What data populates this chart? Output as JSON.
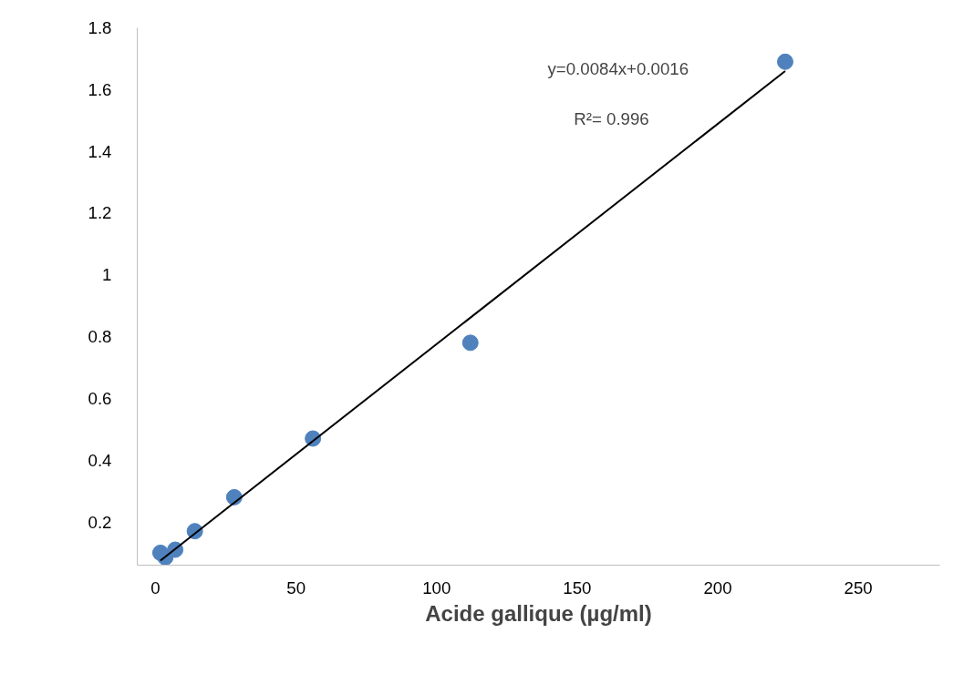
{
  "chart_data": {
    "type": "scatter",
    "xlabel": "Acide gallique (µg/ml)",
    "xlim": [
      -6.5,
      279
    ],
    "xticks": [
      0,
      50,
      100,
      150,
      200,
      250
    ],
    "ylim": [
      0.06,
      1.8
    ],
    "yticks": [
      0.2,
      0.4,
      0.6,
      0.8,
      1,
      1.2,
      1.4,
      1.6,
      1.8
    ],
    "grid": false,
    "series": [
      {
        "marker": "circle",
        "color": "#4f81bd",
        "x": [
          1.75,
          3.5,
          7,
          14,
          28,
          56,
          112,
          224
        ],
        "values": [
          0.1,
          0.085,
          0.11,
          0.17,
          0.28,
          0.47,
          0.78,
          1.69
        ]
      },
      {
        "type": "line",
        "color": "#000000",
        "x": [
          1.75,
          224
        ],
        "values": [
          0.075,
          1.66
        ]
      }
    ],
    "annotations": [
      "y=0.0084x+0.0016",
      "R²= 0.996"
    ]
  }
}
